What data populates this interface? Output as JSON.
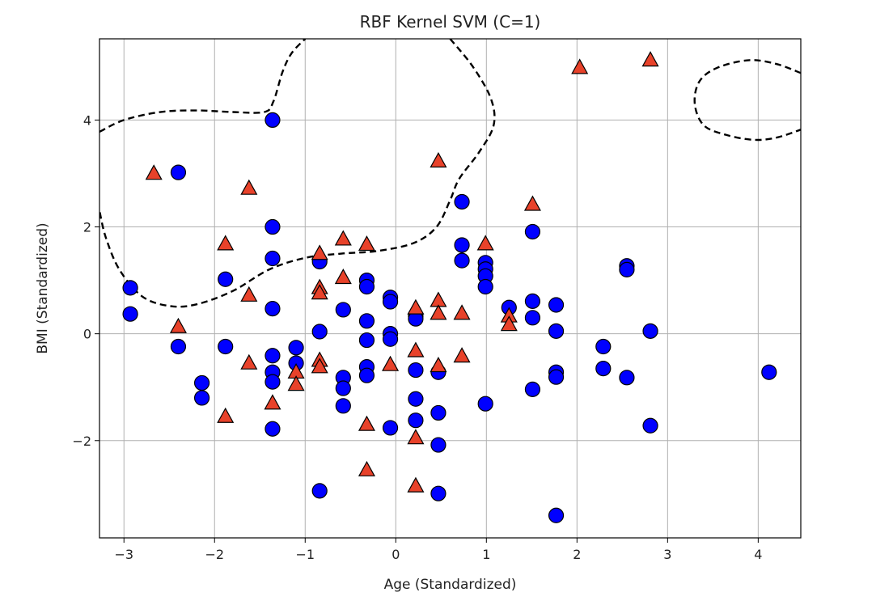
{
  "chart_data": {
    "type": "scatter",
    "title": "RBF Kernel SVM (C=1)",
    "xlabel": "Age (Standardized)",
    "ylabel": "BMI (Standardized)",
    "xlim": [
      -3.27,
      4.47
    ],
    "ylim": [
      -3.82,
      5.52
    ],
    "grid": true,
    "xticks": [
      -3,
      -2,
      -1,
      0,
      1,
      2,
      3,
      4
    ],
    "xtick_labels": [
      "−3",
      "−2",
      "−1",
      "0",
      "1",
      "2",
      "3",
      "4"
    ],
    "yticks": [
      -2,
      0,
      2,
      4
    ],
    "ytick_labels": [
      "−2",
      "0",
      "2",
      "4"
    ],
    "colors": {
      "circle": "#0000ff",
      "triangle": "#e8422a",
      "edge": "#000000",
      "boundary": "#000000",
      "grid": "#b0b0b0"
    },
    "series": [
      {
        "marker": "circle",
        "color": "#0000ff",
        "points": [
          [
            -2.93,
            0.86
          ],
          [
            -2.93,
            0.37
          ],
          [
            -2.4,
            3.02
          ],
          [
            -2.4,
            -0.24
          ],
          [
            -2.14,
            -0.92
          ],
          [
            -2.14,
            -1.2
          ],
          [
            -1.88,
            1.02
          ],
          [
            -1.88,
            -0.24
          ],
          [
            -1.36,
            4.0
          ],
          [
            -1.36,
            2.0
          ],
          [
            -1.36,
            1.41
          ],
          [
            -1.36,
            0.47
          ],
          [
            -1.36,
            -0.41
          ],
          [
            -1.36,
            -0.72
          ],
          [
            -1.36,
            -0.9
          ],
          [
            -1.36,
            -1.78
          ],
          [
            -1.1,
            -0.26
          ],
          [
            -1.1,
            -0.55
          ],
          [
            -0.84,
            1.35
          ],
          [
            -0.84,
            0.04
          ],
          [
            -0.84,
            -2.94
          ],
          [
            -0.58,
            0.45
          ],
          [
            -0.58,
            -0.82
          ],
          [
            -0.58,
            -1.02
          ],
          [
            -0.58,
            -1.35
          ],
          [
            -0.32,
            1.0
          ],
          [
            -0.32,
            0.88
          ],
          [
            -0.32,
            0.24
          ],
          [
            -0.32,
            -0.12
          ],
          [
            -0.32,
            -0.62
          ],
          [
            -0.32,
            -0.78
          ],
          [
            -0.06,
            0.68
          ],
          [
            -0.06,
            0.6
          ],
          [
            -0.06,
            0.0
          ],
          [
            -0.06,
            -0.1
          ],
          [
            -0.06,
            -1.76
          ],
          [
            0.22,
            0.33
          ],
          [
            0.22,
            0.28
          ],
          [
            0.22,
            -0.68
          ],
          [
            0.22,
            -1.22
          ],
          [
            0.22,
            -1.62
          ],
          [
            0.47,
            -0.72
          ],
          [
            0.47,
            -1.48
          ],
          [
            0.47,
            -2.08
          ],
          [
            0.47,
            -2.99
          ],
          [
            0.73,
            2.47
          ],
          [
            0.73,
            1.66
          ],
          [
            0.73,
            1.37
          ],
          [
            0.99,
            1.33
          ],
          [
            0.99,
            1.21
          ],
          [
            0.99,
            1.08
          ],
          [
            0.99,
            0.88
          ],
          [
            0.99,
            -1.31
          ],
          [
            1.25,
            0.49
          ],
          [
            1.51,
            1.91
          ],
          [
            1.51,
            0.61
          ],
          [
            1.51,
            0.3
          ],
          [
            1.51,
            -1.04
          ],
          [
            1.77,
            0.54
          ],
          [
            1.77,
            0.05
          ],
          [
            1.77,
            -0.72
          ],
          [
            1.77,
            -0.81
          ],
          [
            1.77,
            -3.4
          ],
          [
            2.29,
            -0.24
          ],
          [
            2.29,
            -0.65
          ],
          [
            2.55,
            1.27
          ],
          [
            2.55,
            1.2
          ],
          [
            2.55,
            -0.82
          ],
          [
            2.81,
            0.05
          ],
          [
            2.81,
            -1.72
          ],
          [
            4.12,
            -0.72
          ]
        ]
      },
      {
        "marker": "triangle",
        "color": "#e8422a",
        "points": [
          [
            -2.67,
            3.0
          ],
          [
            -2.4,
            0.13
          ],
          [
            -1.88,
            1.68
          ],
          [
            -1.88,
            -1.55
          ],
          [
            -1.62,
            2.72
          ],
          [
            -1.62,
            0.72
          ],
          [
            -1.62,
            -0.55
          ],
          [
            -1.36,
            -1.3
          ],
          [
            -1.1,
            -0.72
          ],
          [
            -1.1,
            -0.95
          ],
          [
            -0.84,
            1.5
          ],
          [
            -0.84,
            0.86
          ],
          [
            -0.84,
            0.76
          ],
          [
            -0.84,
            -0.5
          ],
          [
            -0.84,
            -0.62
          ],
          [
            -0.58,
            1.77
          ],
          [
            -0.58,
            1.05
          ],
          [
            -0.32,
            1.67
          ],
          [
            -0.32,
            -1.7
          ],
          [
            -0.32,
            -2.55
          ],
          [
            -0.06,
            -0.58
          ],
          [
            0.22,
            0.48
          ],
          [
            0.22,
            -0.32
          ],
          [
            0.22,
            -1.95
          ],
          [
            0.22,
            -2.85
          ],
          [
            0.47,
            3.23
          ],
          [
            0.47,
            0.62
          ],
          [
            0.47,
            0.38
          ],
          [
            0.47,
            -0.6
          ],
          [
            0.73,
            0.38
          ],
          [
            0.73,
            -0.42
          ],
          [
            0.99,
            1.68
          ],
          [
            1.25,
            0.33
          ],
          [
            1.25,
            0.17
          ],
          [
            1.51,
            2.42
          ],
          [
            2.03,
            4.98
          ],
          [
            2.81,
            5.12
          ]
        ]
      }
    ],
    "decision_boundary": [
      [
        [
          -3.27,
          3.78
        ],
        [
          -3.0,
          4.0
        ],
        [
          -2.6,
          4.15
        ],
        [
          -2.2,
          4.18
        ],
        [
          -1.8,
          4.15
        ],
        [
          -1.45,
          4.15
        ],
        [
          -1.35,
          4.35
        ],
        [
          -1.25,
          4.9
        ],
        [
          -1.15,
          5.25
        ],
        [
          -1.0,
          5.52
        ]
      ],
      [
        [
          0.6,
          5.52
        ],
        [
          0.85,
          5.0
        ],
        [
          1.05,
          4.4
        ],
        [
          1.08,
          3.9
        ],
        [
          0.92,
          3.4
        ],
        [
          0.7,
          2.9
        ],
        [
          0.6,
          2.5
        ],
        [
          0.45,
          2.0
        ],
        [
          0.2,
          1.7
        ],
        [
          -0.2,
          1.55
        ],
        [
          -0.6,
          1.5
        ],
        [
          -1.0,
          1.42
        ],
        [
          -1.4,
          1.2
        ],
        [
          -1.8,
          0.8
        ],
        [
          -2.2,
          0.55
        ],
        [
          -2.5,
          0.52
        ],
        [
          -2.8,
          0.7
        ],
        [
          -3.05,
          1.2
        ],
        [
          -3.2,
          1.8
        ],
        [
          -3.27,
          2.3
        ]
      ],
      [
        [
          4.47,
          4.88
        ],
        [
          4.2,
          5.05
        ],
        [
          3.9,
          5.12
        ],
        [
          3.55,
          4.98
        ],
        [
          3.35,
          4.72
        ],
        [
          3.3,
          4.3
        ],
        [
          3.4,
          3.9
        ],
        [
          3.65,
          3.72
        ],
        [
          3.95,
          3.63
        ],
        [
          4.2,
          3.67
        ],
        [
          4.47,
          3.82
        ]
      ]
    ]
  }
}
